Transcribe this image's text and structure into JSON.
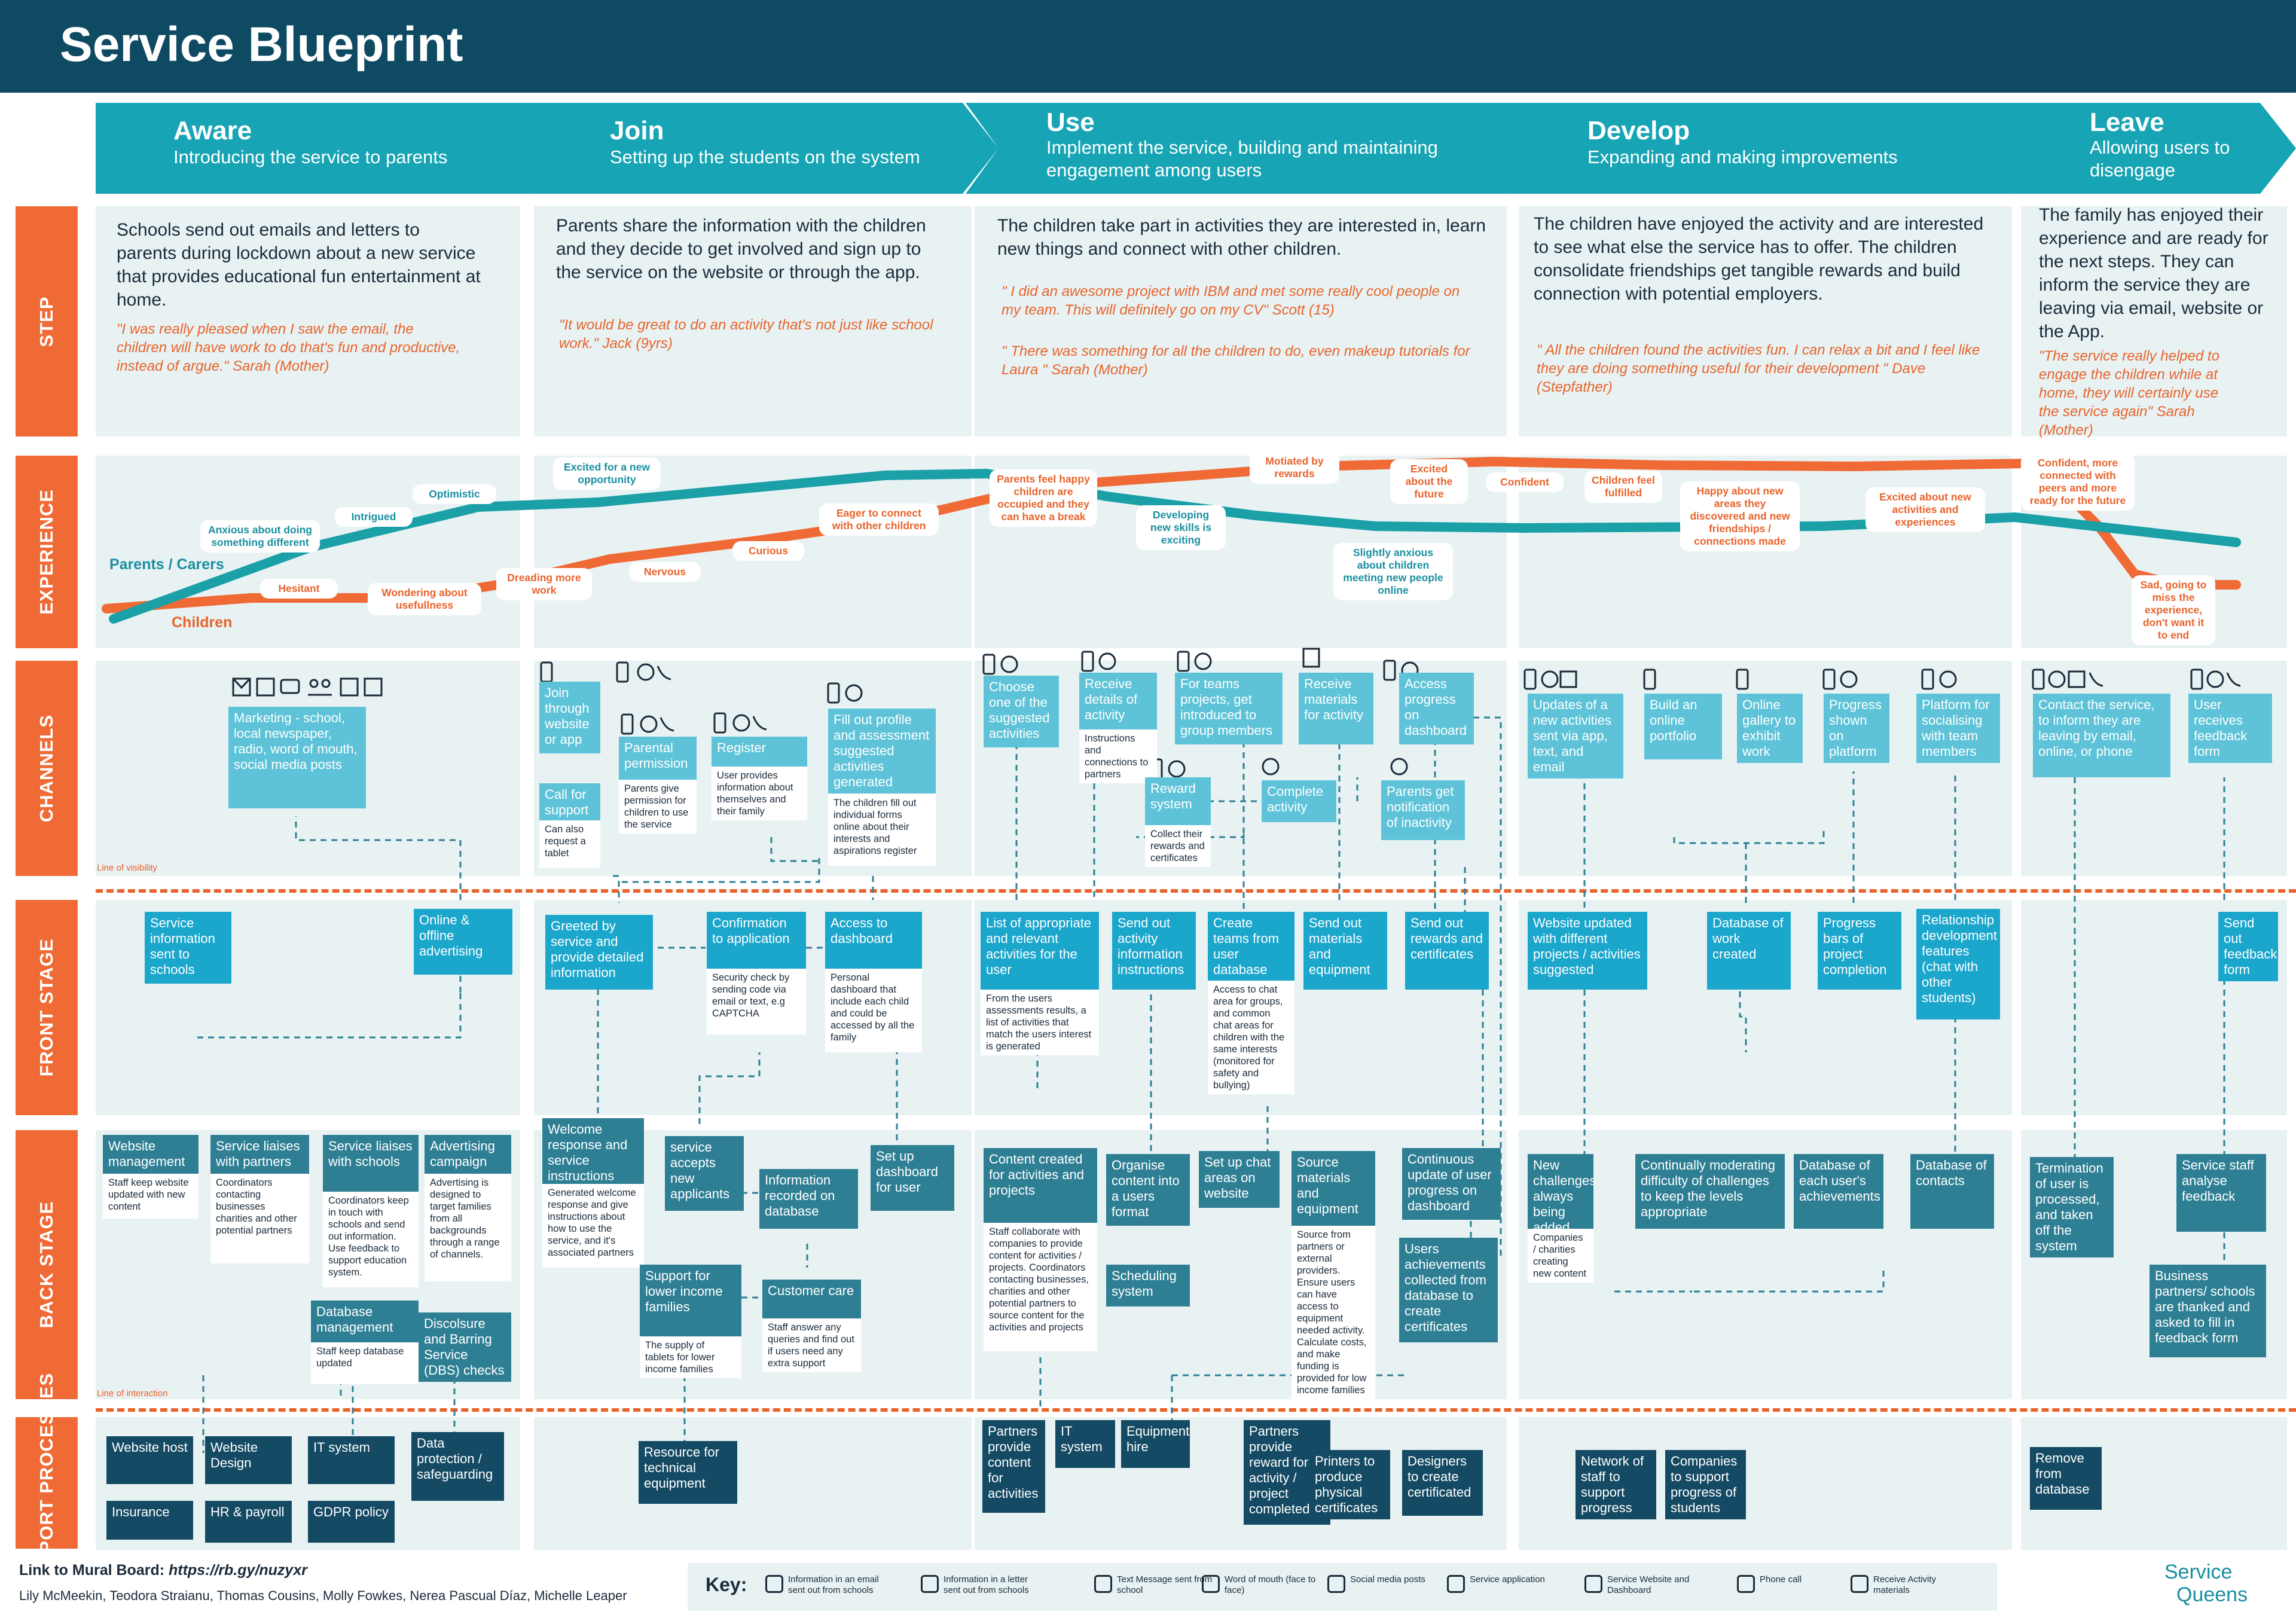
{
  "title": "Service Blueprint",
  "phases": [
    {
      "title": "Aware",
      "subtitle": "Introducing the service to parents"
    },
    {
      "title": "Join",
      "subtitle": "Setting up the students on the system"
    },
    {
      "title": "Use",
      "subtitle": "Implement the service, building and maintaining engagement among users"
    },
    {
      "title": "Develop",
      "subtitle": "Expanding and making improvements"
    },
    {
      "title": "Leave",
      "subtitle": "Allowing users to disengage"
    }
  ],
  "row_labels": {
    "step": "STEP",
    "experience": "EXPERIENCE",
    "channels": "CHANNELS",
    "front_stage": "FRONT STAGE",
    "back_stage": "BACK STAGE",
    "support": "SUPPORT PROCESSES"
  },
  "steps": [
    {
      "text": "Schools send out emails and letters to parents during lockdown about a new service that provides educational fun entertainment at home.",
      "quotes": [
        "\"I was really pleased when I saw the email, the children will have work to do that's fun and productive, instead of argue.\" Sarah (Mother)"
      ]
    },
    {
      "text": "Parents share the information with the children and they decide to get involved and sign up to the service on the website or through the app.",
      "quotes": [
        "\"It would be great to do an activity that's not just like school work.\" Jack (9yrs)"
      ]
    },
    {
      "text": "The children take part in activities they are interested in, learn new things and connect with other children.",
      "quotes": [
        "\" I did an awesome project with IBM and met some really cool people on my team. This will  definitely go on my CV\" Scott  (15)",
        "\" There was something for all the children to do, even makeup tutorials for Laura \" Sarah  (Mother)"
      ]
    },
    {
      "text": "The children have enjoyed the activity and are interested to see what else the service has to offer. The children consolidate friendships get tangible rewards and build connection with potential employers.",
      "quotes": [
        "\" All the children found the activities fun. I can relax a bit and I feel like they are doing something useful for their development \" Dave  (Stepfather)"
      ]
    },
    {
      "text": "The family has enjoyed their experience and are ready for the next steps. They can inform the service they are leaving via email, website or the App.",
      "quotes": [
        "\"The service really helped to engage the children while at home, they will certainly use the service again\" Sarah  (Mother)"
      ]
    }
  ],
  "experience": {
    "series": [
      {
        "name": "Parents / Carers",
        "color": "#1ba0a8"
      },
      {
        "name": "Children",
        "color": "#f06a35"
      }
    ],
    "labels": [
      {
        "text": "Anxious about doing something different",
        "tone": "t"
      },
      {
        "text": "Intrigued",
        "tone": "t"
      },
      {
        "text": "Optimistic",
        "tone": "t"
      },
      {
        "text": "Excited for a new opportunity",
        "tone": "t"
      },
      {
        "text": "Hesitant",
        "tone": "o"
      },
      {
        "text": "Wondering about usefullness",
        "tone": "o"
      },
      {
        "text": "Dreading more work",
        "tone": "o"
      },
      {
        "text": "Nervous",
        "tone": "o"
      },
      {
        "text": "Curious",
        "tone": "o"
      },
      {
        "text": "Eager to connect with other children",
        "tone": "o"
      },
      {
        "text": "Parents feel happy children are occupied and they can have a break",
        "tone": "o"
      },
      {
        "text": "Developing new skills is exciting",
        "tone": "t"
      },
      {
        "text": "Motiated by rewards",
        "tone": "o"
      },
      {
        "text": "Excited about the future",
        "tone": "o"
      },
      {
        "text": "Slightly anxious about children meeting new people online",
        "tone": "t"
      },
      {
        "text": "Confident",
        "tone": "o"
      },
      {
        "text": "Children feel fulfilled",
        "tone": "o"
      },
      {
        "text": "Happy about new areas they discovered and new friendships / connections made",
        "tone": "o"
      },
      {
        "text": "Excited about new activities and experiences",
        "tone": "o"
      },
      {
        "text": "Confident, more connected with peers and more ready for the future",
        "tone": "o"
      },
      {
        "text": "Sad, going to miss the experience, don't want it to end",
        "tone": "o"
      }
    ]
  },
  "channels": [
    {
      "text": "Marketing - school, local newspaper, radio, word of mouth, social media posts",
      "note": ""
    },
    {
      "text": "Join through website or app",
      "note": ""
    },
    {
      "text": "Call for support",
      "note": "Can also request a tablet"
    },
    {
      "text": "Parental permission",
      "note": "Parents give permission for children to use the service"
    },
    {
      "text": "Register",
      "note": "User provides information about themselves and their family"
    },
    {
      "text": "Fill out profile and assessment suggested activities generated",
      "note": "The children fill out individual forms online about their interests and aspirations register"
    },
    {
      "text": "Choose one of the suggested activities",
      "note": ""
    },
    {
      "text": "Receive details of activity",
      "note": "Instructions and connections to partners"
    },
    {
      "text": "For teams projects, get introduced to group members",
      "note": ""
    },
    {
      "text": "Receive materials for activity",
      "note": ""
    },
    {
      "text": "Access progress on dashboard",
      "note": ""
    },
    {
      "text": "Reward system",
      "note": "Collect their rewards and certificates"
    },
    {
      "text": "Complete activity",
      "note": ""
    },
    {
      "text": "Parents get notification of inactivity",
      "note": ""
    },
    {
      "text": "Updates of a new activities sent via app, text, and email",
      "note": ""
    },
    {
      "text": "Build an online portfolio",
      "note": ""
    },
    {
      "text": "Online gallery to exhibit work",
      "note": ""
    },
    {
      "text": "Progress shown on platform",
      "note": ""
    },
    {
      "text": "Platform for socialising with team members",
      "note": ""
    },
    {
      "text": "Contact the service, to inform they are leaving by email, online, or phone",
      "note": ""
    },
    {
      "text": "User receives feedback form",
      "note": ""
    }
  ],
  "line_of_visibility": "Line of visibility",
  "line_of_interaction": "Line of interaction",
  "front": [
    {
      "text": "Service information sent to schools",
      "note": ""
    },
    {
      "text": "Online  & offline advertising",
      "note": ""
    },
    {
      "text": "Greeted by service and provide detailed information",
      "note": ""
    },
    {
      "text": "Confirmation to application",
      "note": "Security check by sending code via email or text, e.g CAPTCHA"
    },
    {
      "text": "Access to dashboard",
      "note": "Personal dashboard that include each child and could be accessed by all the family"
    },
    {
      "text": "List of appropriate and relevant activities for the user",
      "note": "From the users assessments results, a list of activities that match the users interest is generated"
    },
    {
      "text": "Send out activity information instructions",
      "note": ""
    },
    {
      "text": "Create teams from user database",
      "note": "Access to chat area for groups, and common chat areas for children with the same interests (monitored for safety and bullying)"
    },
    {
      "text": "Send out materials and equipment",
      "note": ""
    },
    {
      "text": "Send out rewards and certificates",
      "note": ""
    },
    {
      "text": "Website updated with different projects / activities suggested",
      "note": ""
    },
    {
      "text": "Database of work created",
      "note": ""
    },
    {
      "text": "Progress bars of project completion",
      "note": ""
    },
    {
      "text": "Relationship development features (chat with other students)",
      "note": ""
    },
    {
      "text": "Send out feedback form",
      "note": ""
    }
  ],
  "back": [
    {
      "text": "Website management",
      "note": "Staff keep website updated with new content"
    },
    {
      "text": "Service liaises with partners",
      "note": "Coordinators contacting businesses charities and other potential partners"
    },
    {
      "text": "Service liaises with schools",
      "note": "Coordinators keep in touch with schools and send out information. Use feedback to support education system."
    },
    {
      "text": "Advertising campaign",
      "note": "Advertising is designed to target families from all backgrounds through a range of channels."
    },
    {
      "text": "Database management",
      "note": "Staff keep database updated"
    },
    {
      "text": "Discolsure and Barring Service (DBS) checks",
      "note": ""
    },
    {
      "text": "Welcome response and service instructions",
      "note": "Generated welcome response and give instructions about how to use the service, and it's associated partners"
    },
    {
      "text": "service accepts new applicants",
      "note": ""
    },
    {
      "text": "Information recorded on database",
      "note": ""
    },
    {
      "text": "Set up dashboard for user",
      "note": ""
    },
    {
      "text": "Support for lower income families",
      "note": "The supply of tablets for lower income families"
    },
    {
      "text": "Customer care",
      "note": "Staff answer any queries and find out if users need any extra support"
    },
    {
      "text": "Content created for activities and projects",
      "note": "Staff collaborate with companies to provide content for activities / projects. Coordinators contacting businesses, charities and other potential partners to source content for the activities and projects"
    },
    {
      "text": "Organise content into a users format",
      "note": ""
    },
    {
      "text": "Set up chat areas on website",
      "note": ""
    },
    {
      "text": "Source materials and equipment",
      "note": "Source from partners or external providers. Ensure users can have access to equipment needed activity. Calculate costs, and make funding is provided for low income families"
    },
    {
      "text": "Continuous update of user progress on dashboard",
      "note": ""
    },
    {
      "text": "Scheduling system",
      "note": ""
    },
    {
      "text": "Users achievements collected from database to create certificates",
      "note": ""
    },
    {
      "text": "New challenges always being added",
      "note": "Companies / charities creating new content"
    },
    {
      "text": "Continually moderating difficulty of challenges to keep the levels appropriate",
      "note": ""
    },
    {
      "text": "Database of each user's achievements",
      "note": ""
    },
    {
      "text": "Database of contacts",
      "note": ""
    },
    {
      "text": "Termination of user is processed, and taken off the system",
      "note": ""
    },
    {
      "text": "Service staff analyse feedback",
      "note": ""
    },
    {
      "text": "Business partners/ schools are thanked and asked to fill in feedback form",
      "note": ""
    }
  ],
  "support": [
    "Website host",
    "Website Design",
    "IT system",
    "Data protection / safeguarding",
    "Insurance",
    "HR & payroll",
    "GDPR policy",
    "Resource for technical equipment",
    "Partners provide content for activities",
    "IT system",
    "Equipment hire",
    "Partners provide reward for activity / project completed",
    "Printers to produce physical certificates",
    "Designers to create certificated",
    "Network of staff to support progress",
    "Companies to support progress of students",
    "Remove from database"
  ],
  "footer": {
    "link_label": "Link to Mural Board:",
    "link_url": "https://rb.gy/nuzyxr",
    "authors": "Lily McMeekin, Teodora Straianu, Thomas Cousins, Molly Fowkes, Nerea Pascual Díaz, Michelle Leaper",
    "brand_line1": "Service",
    "brand_line2": "Queens"
  },
  "key": {
    "label": "Key:",
    "items": [
      {
        "icon": "email-icon",
        "text": "Information in an email sent out from schools"
      },
      {
        "icon": "letter-icon",
        "text": "Information in a letter sent out from schools"
      },
      {
        "icon": "text-message-icon",
        "text": "Text Message sent from school"
      },
      {
        "icon": "word-of-mouth-icon",
        "text": "Word of mouth (face to face)"
      },
      {
        "icon": "social-media-icon",
        "text": "Social media posts"
      },
      {
        "icon": "phone-app-icon",
        "text": "Service application"
      },
      {
        "icon": "globe-icon",
        "text": "Service Website and Dashboard"
      },
      {
        "icon": "phone-call-icon",
        "text": "Phone call"
      },
      {
        "icon": "activity-materials-icon",
        "text": "Receive Activity materials"
      }
    ]
  }
}
